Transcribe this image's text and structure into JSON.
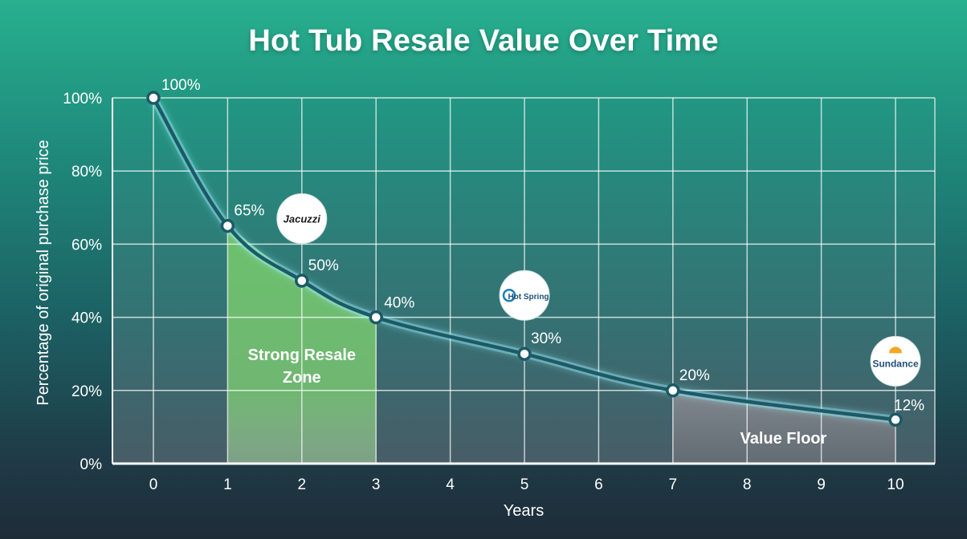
{
  "chart_data": {
    "type": "line",
    "title": "Hot Tub Resale Value Over Time",
    "xlabel": "Years",
    "ylabel": "Percentage of original purchase price",
    "x_ticks": [
      "0",
      "1",
      "2",
      "3",
      "4",
      "5",
      "6",
      "7",
      "8",
      "9",
      "10"
    ],
    "y_ticks": [
      "0%",
      "20%",
      "40%",
      "60%",
      "80%",
      "100%"
    ],
    "xlim": [
      0,
      11
    ],
    "ylim": [
      0,
      100
    ],
    "grid": true,
    "series": [
      {
        "x": [
          0,
          1,
          2,
          3,
          5,
          7,
          10
        ],
        "y": [
          100,
          65,
          50,
          40,
          30,
          20,
          12
        ],
        "labels": [
          "100%",
          "65%",
          "50%",
          "40%",
          "30%",
          "20%",
          "12%"
        ]
      }
    ],
    "zones": [
      {
        "label_lines": [
          "Strong Resale",
          "Zone"
        ],
        "x_start": 1,
        "x_end": 3,
        "color": "#6fc46b"
      },
      {
        "label_lines": [
          "Value Floor"
        ],
        "x_start": 7,
        "x_end": 10,
        "color": "#8d8f95"
      }
    ],
    "brand_badges": [
      {
        "text": "Jacuzzi",
        "x": 2,
        "y": 67
      },
      {
        "text": "Hot Spring",
        "x": 5,
        "y": 46
      },
      {
        "text": "Sundance",
        "x": 10,
        "y": 28
      }
    ],
    "line_color": "#1c5a66"
  }
}
